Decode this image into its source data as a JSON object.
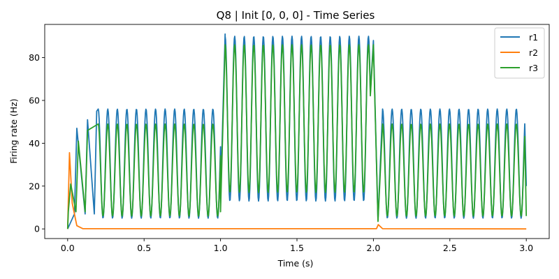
{
  "chart_data": {
    "type": "line",
    "title": "Q8 | Init [0, 0, 0] - Time Series",
    "xlabel": "Time (s)",
    "ylabel": "Firing rate (Hz)",
    "xlim": [
      -0.15,
      3.15
    ],
    "ylim": [
      -4.5,
      95.5
    ],
    "xticks": [
      0.0,
      0.5,
      1.0,
      1.5,
      2.0,
      2.5,
      3.0
    ],
    "xtick_labels": [
      "0.0",
      "0.5",
      "1.0",
      "1.5",
      "2.0",
      "2.5",
      "3.0"
    ],
    "yticks": [
      0,
      20,
      40,
      60,
      80
    ],
    "ytick_labels": [
      "0",
      "20",
      "40",
      "60",
      "80"
    ],
    "grid": false,
    "legend_position": "top-right",
    "oscillation_period_s": 0.0625,
    "series": [
      {
        "name": "r1",
        "color": "#1f77b4",
        "start": 0,
        "peaks": [
          {
            "t": 0.06,
            "v": 47
          },
          {
            "t": 0.13,
            "v": 51
          },
          {
            "t": 0.19,
            "v": 55
          }
        ],
        "phases": [
          {
            "t0": 0.2,
            "t1": 1.0,
            "peak": 56,
            "trough": 5
          },
          {
            "t0": 1.03,
            "t1": 1.98,
            "peak": 90,
            "trough": 13
          },
          {
            "t0": 2.06,
            "t1": 2.99,
            "peak": 56,
            "trough": 5
          }
        ],
        "transitions": [
          {
            "t": 1.0,
            "v": 14
          },
          {
            "t": 1.03,
            "v": 91
          },
          {
            "t": 2.0,
            "v": 88
          },
          {
            "t": 2.03,
            "v": 4
          }
        ],
        "end": {
          "t": 3.0,
          "v": 20
        }
      },
      {
        "name": "r2",
        "color": "#ff7f0e",
        "points": [
          {
            "t": 0.0,
            "v": 0
          },
          {
            "t": 0.012,
            "v": 35.6
          },
          {
            "t": 0.03,
            "v": 12
          },
          {
            "t": 0.06,
            "v": 1.5
          },
          {
            "t": 0.1,
            "v": 0.1
          },
          {
            "t": 2.02,
            "v": 0.1
          },
          {
            "t": 2.032,
            "v": 2
          },
          {
            "t": 2.06,
            "v": 0.1
          },
          {
            "t": 3.0,
            "v": 0
          }
        ]
      },
      {
        "name": "r3",
        "color": "#2ca02c",
        "start": 0,
        "peaks": [
          {
            "t": 0.02,
            "v": 21
          },
          {
            "t": 0.07,
            "v": 41
          },
          {
            "t": 0.13,
            "v": 46
          }
        ],
        "phases": [
          {
            "t0": 0.2,
            "t1": 1.0,
            "peak": 49,
            "trough": 6
          },
          {
            "t0": 1.03,
            "t1": 1.98,
            "peak": 86,
            "trough": 17
          },
          {
            "t0": 2.06,
            "t1": 2.99,
            "peak": 49,
            "trough": 6
          }
        ],
        "transitions": [
          {
            "t": 1.0,
            "v": 8
          },
          {
            "t": 1.03,
            "v": 86
          },
          {
            "t": 2.0,
            "v": 86
          },
          {
            "t": 2.03,
            "v": 3.5
          }
        ],
        "end": {
          "t": 3.0,
          "v": 6
        }
      }
    ]
  }
}
